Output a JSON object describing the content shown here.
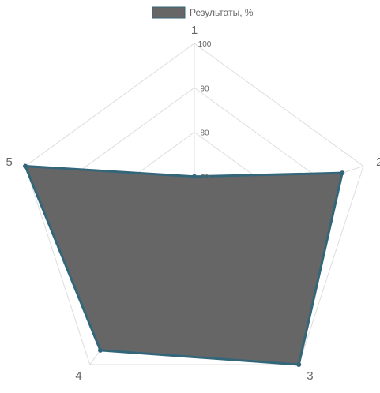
{
  "chart_data": {
    "type": "radar",
    "labels": [
      "1",
      "2",
      "3",
      "4",
      "5"
    ],
    "series": [
      {
        "name": "Результаты, %",
        "values": [
          70,
          95,
          100,
          96,
          100
        ]
      }
    ],
    "rlim": [
      60,
      100
    ],
    "ticks": [
      70,
      80,
      90,
      100
    ],
    "tick_labels": [
      "70",
      "80",
      "90",
      "100"
    ],
    "legend": "top",
    "grid": true,
    "colors": {
      "fill": "#666666",
      "border": "#34667a",
      "grid": "#dddddd"
    }
  }
}
